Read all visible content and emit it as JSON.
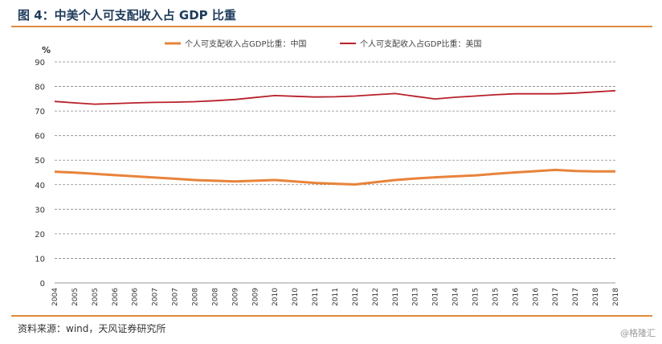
{
  "header": {
    "title": "图 4：中美个人可支配收入占 GDP 比重"
  },
  "footer": {
    "source": "资料来源：wind，天风证券研究所",
    "watermark": "@格隆汇"
  },
  "colors": {
    "china": "#e8833a",
    "usa": "#b8202a",
    "grid": "#888888",
    "accent": "#e08a3c"
  },
  "chart_data": {
    "type": "line",
    "ylabel": "%",
    "ylim": [
      0,
      90
    ],
    "yticks": [
      0,
      10,
      20,
      30,
      40,
      50,
      60,
      70,
      80,
      90
    ],
    "categories": [
      "2004",
      "2005",
      "2005",
      "2006",
      "2006",
      "2007",
      "2007",
      "2008",
      "2008",
      "2009",
      "2009",
      "2010",
      "2010",
      "2011",
      "2011",
      "2012",
      "2012",
      "2013",
      "2013",
      "2014",
      "2014",
      "2015",
      "2015",
      "2016",
      "2016",
      "2017",
      "2017",
      "2018",
      "2018"
    ],
    "series": [
      {
        "name": "个人可支配收入占GDP比重：中国",
        "color": "#e8833a",
        "values": [
          45.3,
          44.9,
          44.4,
          43.9,
          43.4,
          42.9,
          42.4,
          41.9,
          41.6,
          41.3,
          41.6,
          41.9,
          41.3,
          40.7,
          40.4,
          40.1,
          41.0,
          41.9,
          42.5,
          43.0,
          43.4,
          43.8,
          44.4,
          45.0,
          45.5,
          46.0,
          45.6,
          45.4,
          45.4
        ]
      },
      {
        "name": "个人可支配收入占GDP比重：美国",
        "color": "#b8202a",
        "values": [
          73.9,
          73.3,
          72.8,
          73.0,
          73.3,
          73.5,
          73.6,
          73.8,
          74.2,
          74.7,
          75.5,
          76.3,
          76.0,
          75.7,
          75.8,
          76.1,
          76.6,
          77.1,
          76.0,
          74.9,
          75.6,
          76.1,
          76.6,
          77.0,
          77.0,
          77.0,
          77.3,
          77.8,
          78.3
        ]
      }
    ]
  }
}
